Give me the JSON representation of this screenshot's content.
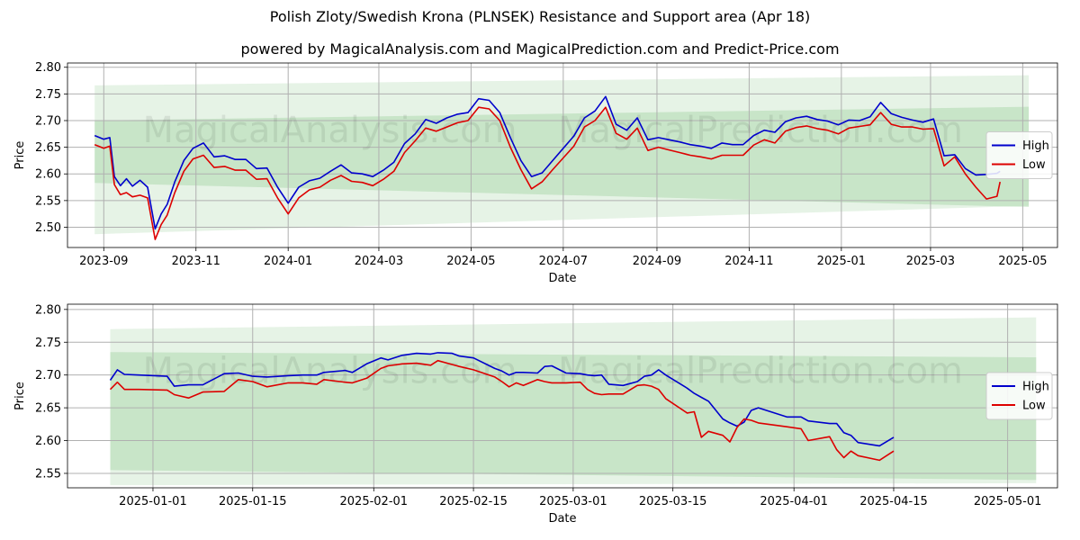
{
  "title": "Polish Zloty/Swedish Krona (PLNSEK) Resistance and Support area (Apr 18)",
  "subtitle": "powered by MagicalAnalysis.com and MagicalPrediction.com and Predict-Price.com",
  "watermarks": [
    "MagicalAnalysis.com",
    "MagicalPrediction.com"
  ],
  "colors": {
    "high": "#0000cc",
    "low": "#dd0000",
    "band": "#2e9b2e",
    "grid": "#b0b0b0"
  },
  "chart_data": [
    {
      "type": "line",
      "xlabel": "Date",
      "ylabel": "Price",
      "x_ticks": [
        "2023-09",
        "2023-11",
        "2024-01",
        "2024-03",
        "2024-05",
        "2024-07",
        "2024-09",
        "2024-11",
        "2025-01",
        "2025-03",
        "2025-05"
      ],
      "y_ticks": [
        "2.50",
        "2.55",
        "2.60",
        "2.65",
        "2.70",
        "2.75",
        "2.80"
      ],
      "xlim": [
        "2023-08-08",
        "2025-05-24"
      ],
      "ylim": [
        2.462,
        2.808
      ],
      "grid": true,
      "legend": "right",
      "bands": [
        {
          "from": "2023-08-26",
          "to": "2025-05-05",
          "upper": [
            2.766,
            2.785
          ],
          "lower": [
            2.487,
            2.54
          ]
        },
        {
          "from": "2023-08-26",
          "to": "2025-05-05",
          "upper": [
            2.7,
            2.726
          ],
          "lower": [
            2.583,
            2.538
          ]
        }
      ],
      "series": [
        {
          "name": "High",
          "x": [
            "2023-08-26",
            "2023-09-01",
            "2023-09-05",
            "2023-09-08",
            "2023-09-12",
            "2023-09-16",
            "2023-09-20",
            "2023-09-25",
            "2023-09-30",
            "2023-10-05",
            "2023-10-09",
            "2023-10-13",
            "2023-10-18",
            "2023-10-24",
            "2023-10-30",
            "2023-11-06",
            "2023-11-13",
            "2023-11-20",
            "2023-11-27",
            "2023-12-04",
            "2023-12-11",
            "2023-12-18",
            "2023-12-25",
            "2024-01-01",
            "2024-01-08",
            "2024-01-15",
            "2024-01-22",
            "2024-01-29",
            "2024-02-05",
            "2024-02-12",
            "2024-02-19",
            "2024-02-26",
            "2024-03-04",
            "2024-03-11",
            "2024-03-18",
            "2024-03-25",
            "2024-04-01",
            "2024-04-08",
            "2024-04-15",
            "2024-04-22",
            "2024-04-29",
            "2024-05-06",
            "2024-05-13",
            "2024-05-20",
            "2024-05-27",
            "2024-06-03",
            "2024-06-10",
            "2024-06-17",
            "2024-06-24",
            "2024-07-01",
            "2024-07-08",
            "2024-07-15",
            "2024-07-22",
            "2024-07-29",
            "2024-08-05",
            "2024-08-12",
            "2024-08-19",
            "2024-08-26",
            "2024-09-02",
            "2024-09-09",
            "2024-09-16",
            "2024-09-23",
            "2024-09-30",
            "2024-10-07",
            "2024-10-14",
            "2024-10-21",
            "2024-10-28",
            "2024-11-04",
            "2024-11-11",
            "2024-11-18",
            "2024-11-25",
            "2024-12-02",
            "2024-12-09",
            "2024-12-16",
            "2024-12-23",
            "2024-12-30",
            "2025-01-06",
            "2025-01-13",
            "2025-01-20",
            "2025-01-27",
            "2025-02-03",
            "2025-02-10",
            "2025-02-17",
            "2025-02-24",
            "2025-03-03",
            "2025-03-10",
            "2025-03-17",
            "2025-03-24",
            "2025-03-31",
            "2025-04-07",
            "2025-04-14",
            "2025-04-16"
          ],
          "values": [
            2.672,
            2.665,
            2.668,
            2.595,
            2.578,
            2.591,
            2.577,
            2.588,
            2.575,
            2.497,
            2.525,
            2.543,
            2.585,
            2.625,
            2.648,
            2.658,
            2.632,
            2.634,
            2.627,
            2.627,
            2.61,
            2.611,
            2.575,
            2.545,
            2.575,
            2.587,
            2.592,
            2.605,
            2.617,
            2.602,
            2.6,
            2.595,
            2.607,
            2.622,
            2.657,
            2.675,
            2.702,
            2.695,
            2.705,
            2.712,
            2.715,
            2.741,
            2.738,
            2.715,
            2.668,
            2.625,
            2.595,
            2.602,
            2.625,
            2.648,
            2.671,
            2.705,
            2.718,
            2.745,
            2.693,
            2.682,
            2.705,
            2.664,
            2.668,
            2.664,
            2.66,
            2.655,
            2.652,
            2.648,
            2.658,
            2.655,
            2.655,
            2.672,
            2.682,
            2.678,
            2.698,
            2.705,
            2.708,
            2.702,
            2.699,
            2.692,
            2.701,
            2.7,
            2.707,
            2.734,
            2.713,
            2.706,
            2.701,
            2.697,
            2.703,
            2.634,
            2.636,
            2.61,
            2.598,
            2.599,
            2.601,
            2.605
          ]
        },
        {
          "name": "Low",
          "x": [
            "2023-08-26",
            "2023-09-01",
            "2023-09-05",
            "2023-09-08",
            "2023-09-12",
            "2023-09-16",
            "2023-09-20",
            "2023-09-25",
            "2023-09-30",
            "2023-10-05",
            "2023-10-09",
            "2023-10-13",
            "2023-10-18",
            "2023-10-24",
            "2023-10-30",
            "2023-11-06",
            "2023-11-13",
            "2023-11-20",
            "2023-11-27",
            "2023-12-04",
            "2023-12-11",
            "2023-12-18",
            "2023-12-25",
            "2024-01-01",
            "2024-01-08",
            "2024-01-15",
            "2024-01-22",
            "2024-01-29",
            "2024-02-05",
            "2024-02-12",
            "2024-02-19",
            "2024-02-26",
            "2024-03-04",
            "2024-03-11",
            "2024-03-18",
            "2024-03-25",
            "2024-04-01",
            "2024-04-08",
            "2024-04-15",
            "2024-04-22",
            "2024-04-29",
            "2024-05-06",
            "2024-05-13",
            "2024-05-20",
            "2024-05-27",
            "2024-06-03",
            "2024-06-10",
            "2024-06-17",
            "2024-06-24",
            "2024-07-01",
            "2024-07-08",
            "2024-07-15",
            "2024-07-22",
            "2024-07-29",
            "2024-08-05",
            "2024-08-12",
            "2024-08-19",
            "2024-08-26",
            "2024-09-02",
            "2024-09-09",
            "2024-09-16",
            "2024-09-23",
            "2024-09-30",
            "2024-10-07",
            "2024-10-14",
            "2024-10-21",
            "2024-10-28",
            "2024-11-04",
            "2024-11-11",
            "2024-11-18",
            "2024-11-25",
            "2024-12-02",
            "2024-12-09",
            "2024-12-16",
            "2024-12-23",
            "2024-12-30",
            "2025-01-06",
            "2025-01-13",
            "2025-01-20",
            "2025-01-27",
            "2025-02-03",
            "2025-02-10",
            "2025-02-17",
            "2025-02-24",
            "2025-03-03",
            "2025-03-10",
            "2025-03-17",
            "2025-03-24",
            "2025-03-31",
            "2025-04-07",
            "2025-04-14",
            "2025-04-16"
          ],
          "values": [
            2.655,
            2.648,
            2.652,
            2.58,
            2.561,
            2.565,
            2.557,
            2.56,
            2.555,
            2.477,
            2.505,
            2.523,
            2.565,
            2.605,
            2.628,
            2.635,
            2.612,
            2.614,
            2.607,
            2.607,
            2.59,
            2.591,
            2.555,
            2.525,
            2.555,
            2.57,
            2.575,
            2.588,
            2.597,
            2.586,
            2.584,
            2.578,
            2.59,
            2.605,
            2.64,
            2.662,
            2.686,
            2.68,
            2.688,
            2.696,
            2.7,
            2.725,
            2.722,
            2.7,
            2.65,
            2.608,
            2.572,
            2.585,
            2.608,
            2.63,
            2.652,
            2.688,
            2.7,
            2.725,
            2.676,
            2.665,
            2.686,
            2.644,
            2.65,
            2.645,
            2.64,
            2.635,
            2.632,
            2.628,
            2.635,
            2.635,
            2.635,
            2.654,
            2.664,
            2.658,
            2.68,
            2.687,
            2.69,
            2.685,
            2.682,
            2.675,
            2.686,
            2.689,
            2.692,
            2.715,
            2.693,
            2.688,
            2.688,
            2.684,
            2.685,
            2.615,
            2.632,
            2.6,
            2.575,
            2.553,
            2.558,
            2.585
          ]
        }
      ]
    },
    {
      "type": "line",
      "xlabel": "Date",
      "ylabel": "Price",
      "x_ticks": [
        "2025-01-01",
        "2025-01-15",
        "2025-02-01",
        "2025-02-15",
        "2025-03-01",
        "2025-03-15",
        "2025-04-01",
        "2025-04-15",
        "2025-05-01"
      ],
      "y_ticks": [
        "2.55",
        "2.60",
        "2.65",
        "2.70",
        "2.75",
        "2.80"
      ],
      "xlim": [
        "2024-12-20",
        "2025-05-08"
      ],
      "ylim": [
        2.528,
        2.808
      ],
      "grid": true,
      "legend": "right",
      "bands": [
        {
          "from": "2024-12-26",
          "to": "2025-05-05",
          "upper": [
            2.77,
            2.788
          ],
          "lower": [
            2.532,
            2.535
          ]
        },
        {
          "from": "2024-12-26",
          "to": "2025-05-05",
          "upper": [
            2.735,
            2.727
          ],
          "lower": [
            2.555,
            2.54
          ]
        }
      ],
      "series": [
        {
          "name": "High",
          "x": [
            "2024-12-26",
            "2024-12-27",
            "2024-12-28",
            "2024-12-30",
            "2025-01-03",
            "2025-01-04",
            "2025-01-06",
            "2025-01-08",
            "2025-01-11",
            "2025-01-13",
            "2025-01-15",
            "2025-01-17",
            "2025-01-20",
            "2025-01-22",
            "2025-01-24",
            "2025-01-25",
            "2025-01-28",
            "2025-01-29",
            "2025-01-31",
            "2025-02-02",
            "2025-02-03",
            "2025-02-05",
            "2025-02-07",
            "2025-02-09",
            "2025-02-10",
            "2025-02-12",
            "2025-02-13",
            "2025-02-15",
            "2025-02-18",
            "2025-02-19",
            "2025-02-20",
            "2025-02-21",
            "2025-02-22",
            "2025-02-24",
            "2025-02-25",
            "2025-02-26",
            "2025-02-28",
            "2025-03-02",
            "2025-03-03",
            "2025-03-04",
            "2025-03-05",
            "2025-03-06",
            "2025-03-08",
            "2025-03-10",
            "2025-03-11",
            "2025-03-12",
            "2025-03-13",
            "2025-03-14",
            "2025-03-17",
            "2025-03-18",
            "2025-03-19",
            "2025-03-20",
            "2025-03-22",
            "2025-03-23",
            "2025-03-24",
            "2025-03-25",
            "2025-03-26",
            "2025-03-27",
            "2025-03-31",
            "2025-04-02",
            "2025-04-03",
            "2025-04-06",
            "2025-04-07",
            "2025-04-08",
            "2025-04-09",
            "2025-04-10",
            "2025-04-13",
            "2025-04-15"
          ],
          "values": [
            2.692,
            2.708,
            2.701,
            2.7,
            2.698,
            2.683,
            2.685,
            2.685,
            2.702,
            2.703,
            2.698,
            2.697,
            2.699,
            2.7,
            2.7,
            2.704,
            2.707,
            2.704,
            2.717,
            2.726,
            2.723,
            2.73,
            2.733,
            2.732,
            2.734,
            2.733,
            2.729,
            2.726,
            2.71,
            2.706,
            2.7,
            2.704,
            2.704,
            2.703,
            2.713,
            2.714,
            2.703,
            2.702,
            2.7,
            2.699,
            2.7,
            2.686,
            2.684,
            2.69,
            2.698,
            2.7,
            2.708,
            2.7,
            2.68,
            2.672,
            2.666,
            2.66,
            2.633,
            2.627,
            2.622,
            2.628,
            2.646,
            2.65,
            2.636,
            2.636,
            2.63,
            2.626,
            2.626,
            2.612,
            2.608,
            2.597,
            2.592,
            2.605
          ]
        },
        {
          "name": "Low",
          "x": [
            "2024-12-26",
            "2024-12-27",
            "2024-12-28",
            "2024-12-30",
            "2025-01-03",
            "2025-01-04",
            "2025-01-06",
            "2025-01-08",
            "2025-01-11",
            "2025-01-13",
            "2025-01-15",
            "2025-01-17",
            "2025-01-20",
            "2025-01-22",
            "2025-01-24",
            "2025-01-25",
            "2025-01-28",
            "2025-01-29",
            "2025-01-31",
            "2025-02-02",
            "2025-02-03",
            "2025-02-05",
            "2025-02-07",
            "2025-02-09",
            "2025-02-10",
            "2025-02-12",
            "2025-02-13",
            "2025-02-15",
            "2025-02-18",
            "2025-02-19",
            "2025-02-20",
            "2025-02-21",
            "2025-02-22",
            "2025-02-24",
            "2025-02-25",
            "2025-02-26",
            "2025-02-28",
            "2025-03-02",
            "2025-03-03",
            "2025-03-04",
            "2025-03-05",
            "2025-03-06",
            "2025-03-08",
            "2025-03-10",
            "2025-03-11",
            "2025-03-12",
            "2025-03-13",
            "2025-03-14",
            "2025-03-17",
            "2025-03-18",
            "2025-03-19",
            "2025-03-20",
            "2025-03-22",
            "2025-03-23",
            "2025-03-24",
            "2025-03-25",
            "2025-03-26",
            "2025-03-27",
            "2025-03-31",
            "2025-04-02",
            "2025-04-03",
            "2025-04-06",
            "2025-04-07",
            "2025-04-08",
            "2025-04-09",
            "2025-04-10",
            "2025-04-13",
            "2025-04-15"
          ],
          "values": [
            2.678,
            2.689,
            2.678,
            2.678,
            2.677,
            2.67,
            2.665,
            2.674,
            2.675,
            2.693,
            2.69,
            2.682,
            2.688,
            2.688,
            2.686,
            2.693,
            2.689,
            2.688,
            2.695,
            2.71,
            2.714,
            2.717,
            2.718,
            2.715,
            2.722,
            2.716,
            2.713,
            2.708,
            2.697,
            2.69,
            2.682,
            2.688,
            2.684,
            2.693,
            2.69,
            2.688,
            2.688,
            2.689,
            2.678,
            2.672,
            2.67,
            2.671,
            2.671,
            2.684,
            2.685,
            2.683,
            2.678,
            2.664,
            2.642,
            2.644,
            2.605,
            2.614,
            2.608,
            2.598,
            2.62,
            2.633,
            2.631,
            2.627,
            2.621,
            2.618,
            2.6,
            2.606,
            2.586,
            2.574,
            2.584,
            2.577,
            2.57,
            2.584
          ]
        }
      ]
    }
  ]
}
